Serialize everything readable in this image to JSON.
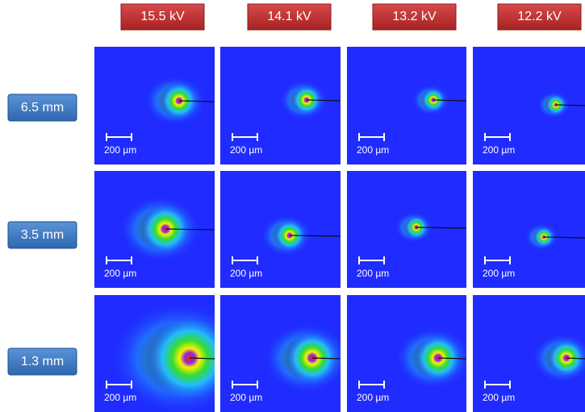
{
  "header": {
    "columns": [
      "15.5 kV",
      "14.1 kV",
      "13.2 kV",
      "12.2 kV"
    ]
  },
  "rows": [
    "6.5 mm",
    "3.5 mm",
    "1.3 mm"
  ],
  "panels": [
    [
      {
        "scale_label": "200 µm"
      },
      {
        "scale_label": "200 µm"
      },
      {
        "scale_label": "200 µm"
      },
      {
        "scale_label": "200 µm"
      }
    ],
    [
      {
        "scale_label": "200 µm"
      },
      {
        "scale_label": "200 µm"
      },
      {
        "scale_label": "200 µm"
      },
      {
        "scale_label": "200 µm"
      }
    ],
    [
      {
        "scale_label": "200 µm"
      },
      {
        "scale_label": "200 µm"
      },
      {
        "scale_label": "200 µm"
      },
      {
        "scale_label": "200 µm"
      }
    ]
  ]
}
